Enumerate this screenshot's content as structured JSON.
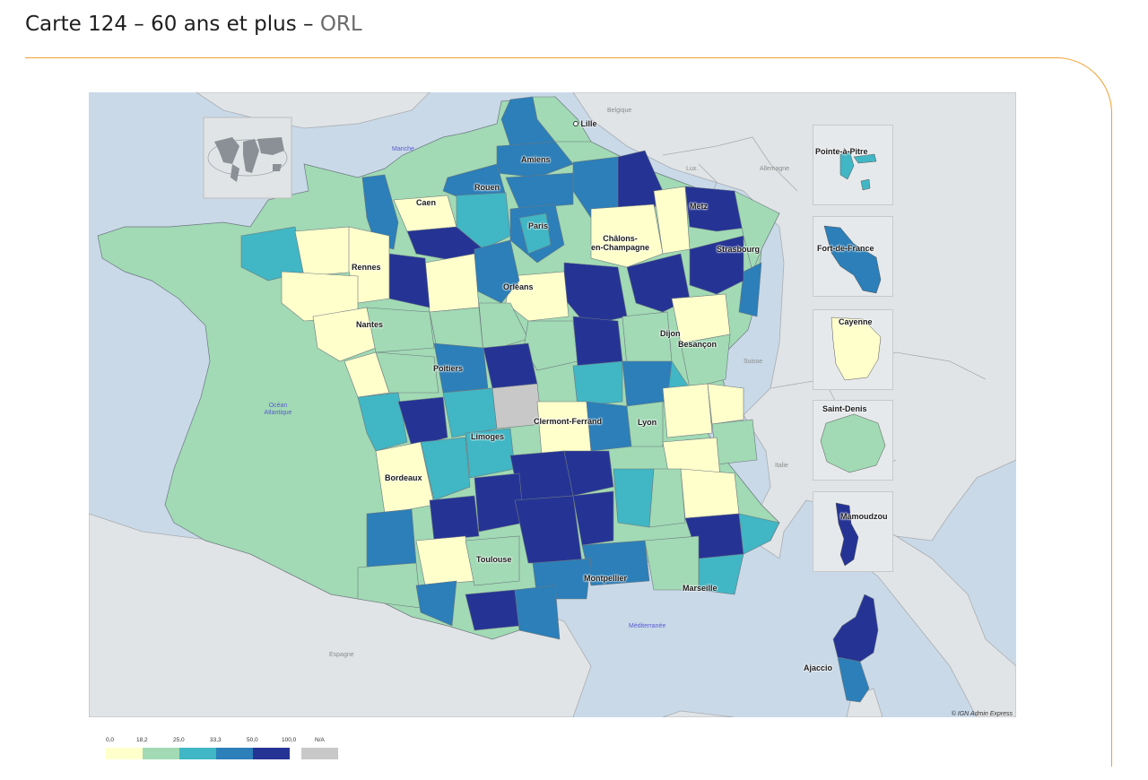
{
  "title": {
    "main": "Carte 124 – 60 ans et plus – ",
    "accent": "ORL"
  },
  "colors": {
    "class1": "#ffffcc",
    "class2": "#a1dab4",
    "class3": "#41b6c4",
    "class4": "#2c7fb8",
    "class5": "#253494",
    "na": "#c8c8c8",
    "sea": "#c9d9e8",
    "land": "#e1e4e6",
    "accent_rule": "#f0a030"
  },
  "map": {
    "cities": {
      "lille": "Lille",
      "amiens": "Amiens",
      "rouen": "Rouen",
      "caen": "Caen",
      "paris": "Paris",
      "chalons": "Châlons-\nen-Champagne",
      "metz": "Metz",
      "strasbourg": "Strasbourg",
      "rennes": "Rennes",
      "orleans": "Orléans",
      "nantes": "Nantes",
      "dijon": "Dijon",
      "besancon": "Besançon",
      "poitiers": "Poitiers",
      "limoges": "Limoges",
      "clermont": "Clermont-Ferrand",
      "lyon": "Lyon",
      "bordeaux": "Bordeaux",
      "toulouse": "Toulouse",
      "montpellier": "Montpellier",
      "marseille": "Marseille",
      "ajaccio": "Ajaccio"
    },
    "countries": {
      "belgique": "Belgique",
      "lux": "Lux.",
      "allemagne": "Allemagne",
      "suisse": "Suisse",
      "italie": "Italie",
      "espagne": "Espagne"
    },
    "seas": {
      "manche": "Manche",
      "atlantique": "Océan\nAtlantique",
      "mediterranee": "Méditerranée"
    },
    "insets": {
      "guadeloupe": "Pointe-à-Pitre",
      "martinique": "Fort-de-France",
      "guyane": "Cayenne",
      "reunion": "Saint-Denis",
      "mayotte": "Mamoudzou"
    },
    "copyright": "© IGN Admin Express"
  },
  "legend": {
    "ticks": [
      "0,0",
      "18,2",
      "25,0",
      "33,3",
      "50,0",
      "100,0"
    ],
    "na_label": "N/A",
    "classes": [
      {
        "from": "0,0",
        "to": "18,2",
        "color": "#ffffcc"
      },
      {
        "from": "18,2",
        "to": "25,0",
        "color": "#a1dab4"
      },
      {
        "from": "25,0",
        "to": "33,3",
        "color": "#41b6c4"
      },
      {
        "from": "33,3",
        "to": "50,0",
        "color": "#2c7fb8"
      },
      {
        "from": "50,0",
        "to": "100,0",
        "color": "#253494"
      }
    ]
  }
}
